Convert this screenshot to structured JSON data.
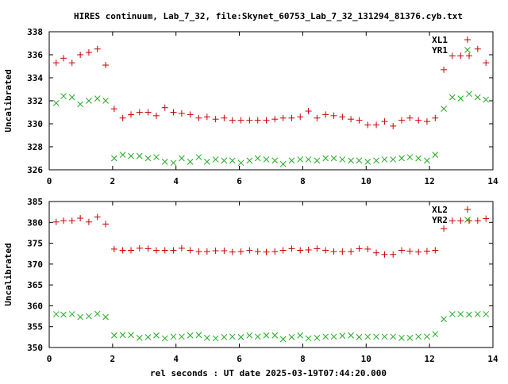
{
  "title": "HIRES continuum, Lab_7_32, file:Skynet_60753_Lab_7_32_131294_81376.cyb.txt",
  "xlabel": "rel seconds : UT date 2025-03-19T07:44:20.000",
  "colors": {
    "plus_series": "#cc0000",
    "cross_series": "#22aa22",
    "frame": "#000000"
  },
  "chart_data": [
    {
      "type": "scatter",
      "ylabel": "Uncalibrated",
      "xlim": [
        0,
        14
      ],
      "ylim": [
        326,
        338
      ],
      "xticks": [
        0,
        2,
        4,
        6,
        8,
        10,
        12,
        14
      ],
      "yticks": [
        326,
        328,
        330,
        332,
        334,
        336,
        338
      ],
      "grid": false,
      "legend_position": "top-right",
      "x": [
        0.22,
        0.45,
        0.72,
        0.98,
        1.25,
        1.52,
        1.78,
        2.05,
        2.32,
        2.58,
        2.85,
        3.12,
        3.38,
        3.65,
        3.92,
        4.18,
        4.45,
        4.72,
        4.98,
        5.25,
        5.52,
        5.78,
        6.05,
        6.32,
        6.58,
        6.85,
        7.12,
        7.38,
        7.65,
        7.92,
        8.18,
        8.45,
        8.72,
        8.98,
        9.25,
        9.52,
        9.78,
        10.05,
        10.32,
        10.58,
        10.85,
        11.12,
        11.38,
        11.65,
        11.92,
        12.18,
        12.45,
        12.72,
        12.98,
        13.25,
        13.52,
        13.78
      ],
      "series": [
        {
          "name": "XL1",
          "marker": "plus",
          "values": [
            335.3,
            335.7,
            335.3,
            336.0,
            336.2,
            336.5,
            335.1,
            331.3,
            330.5,
            330.8,
            331.0,
            331.0,
            330.7,
            331.4,
            331.0,
            330.9,
            330.8,
            330.5,
            330.6,
            330.4,
            330.5,
            330.3,
            330.3,
            330.3,
            330.3,
            330.3,
            330.4,
            330.5,
            330.5,
            330.6,
            331.1,
            330.5,
            330.8,
            330.7,
            330.6,
            330.4,
            330.3,
            329.9,
            329.9,
            330.2,
            329.8,
            330.3,
            330.5,
            330.3,
            330.2,
            330.5,
            334.7,
            335.9,
            335.9,
            335.9,
            336.5,
            335.3
          ]
        },
        {
          "name": "YR1",
          "marker": "cross",
          "values": [
            331.8,
            332.4,
            332.3,
            331.7,
            332.0,
            332.2,
            332.0,
            327.0,
            327.3,
            327.2,
            327.2,
            327.0,
            327.1,
            326.7,
            326.6,
            327.0,
            326.7,
            327.1,
            326.7,
            326.9,
            326.8,
            326.8,
            326.6,
            326.8,
            327.0,
            326.9,
            326.8,
            326.5,
            326.8,
            326.9,
            326.9,
            326.8,
            327.0,
            327.0,
            326.9,
            326.8,
            326.8,
            326.7,
            326.8,
            326.9,
            326.9,
            327.0,
            327.1,
            327.0,
            326.8,
            327.3,
            331.3,
            332.3,
            332.2,
            332.6,
            332.3,
            332.1
          ]
        }
      ]
    },
    {
      "type": "scatter",
      "ylabel": "Uncalibrated",
      "xlim": [
        0,
        14
      ],
      "ylim": [
        350,
        385
      ],
      "xticks": [
        0,
        2,
        4,
        6,
        8,
        10,
        12,
        14
      ],
      "yticks": [
        350,
        355,
        360,
        365,
        370,
        375,
        380,
        385
      ],
      "grid": false,
      "legend_position": "top-right",
      "x": [
        0.22,
        0.45,
        0.72,
        0.98,
        1.25,
        1.52,
        1.78,
        2.05,
        2.32,
        2.58,
        2.85,
        3.12,
        3.38,
        3.65,
        3.92,
        4.18,
        4.45,
        4.72,
        4.98,
        5.25,
        5.52,
        5.78,
        6.05,
        6.32,
        6.58,
        6.85,
        7.12,
        7.38,
        7.65,
        7.92,
        8.18,
        8.45,
        8.72,
        8.98,
        9.25,
        9.52,
        9.78,
        10.05,
        10.32,
        10.58,
        10.85,
        11.12,
        11.38,
        11.65,
        11.92,
        12.18,
        12.45,
        12.72,
        12.98,
        13.25,
        13.52,
        13.78
      ],
      "series": [
        {
          "name": "XL2",
          "marker": "plus",
          "values": [
            380.1,
            380.4,
            380.4,
            381.0,
            380.1,
            381.3,
            379.6,
            373.6,
            373.3,
            373.3,
            373.8,
            373.7,
            373.3,
            373.3,
            373.3,
            373.8,
            373.3,
            373.0,
            373.0,
            373.2,
            373.2,
            372.9,
            373.0,
            373.3,
            373.0,
            372.9,
            373.0,
            373.3,
            373.7,
            373.3,
            373.4,
            373.7,
            373.3,
            373.0,
            373.0,
            373.0,
            373.7,
            373.6,
            372.7,
            372.3,
            372.3,
            373.3,
            373.1,
            372.9,
            373.1,
            373.3,
            378.5,
            380.4,
            380.4,
            380.4,
            380.4,
            380.9
          ]
        },
        {
          "name": "YR2",
          "marker": "cross",
          "values": [
            358.0,
            357.9,
            358.0,
            357.3,
            357.5,
            358.1,
            357.3,
            352.9,
            353.0,
            353.0,
            352.3,
            352.5,
            352.9,
            352.2,
            352.6,
            352.6,
            352.9,
            353.0,
            352.3,
            352.2,
            352.5,
            352.6,
            352.5,
            352.9,
            352.6,
            352.9,
            352.9,
            352.0,
            352.5,
            352.9,
            352.2,
            352.3,
            352.6,
            352.6,
            352.8,
            352.9,
            352.5,
            352.6,
            352.6,
            352.6,
            352.6,
            352.3,
            352.3,
            352.6,
            352.6,
            353.2,
            356.8,
            358.0,
            358.0,
            357.9,
            358.0,
            358.0
          ]
        }
      ]
    }
  ]
}
